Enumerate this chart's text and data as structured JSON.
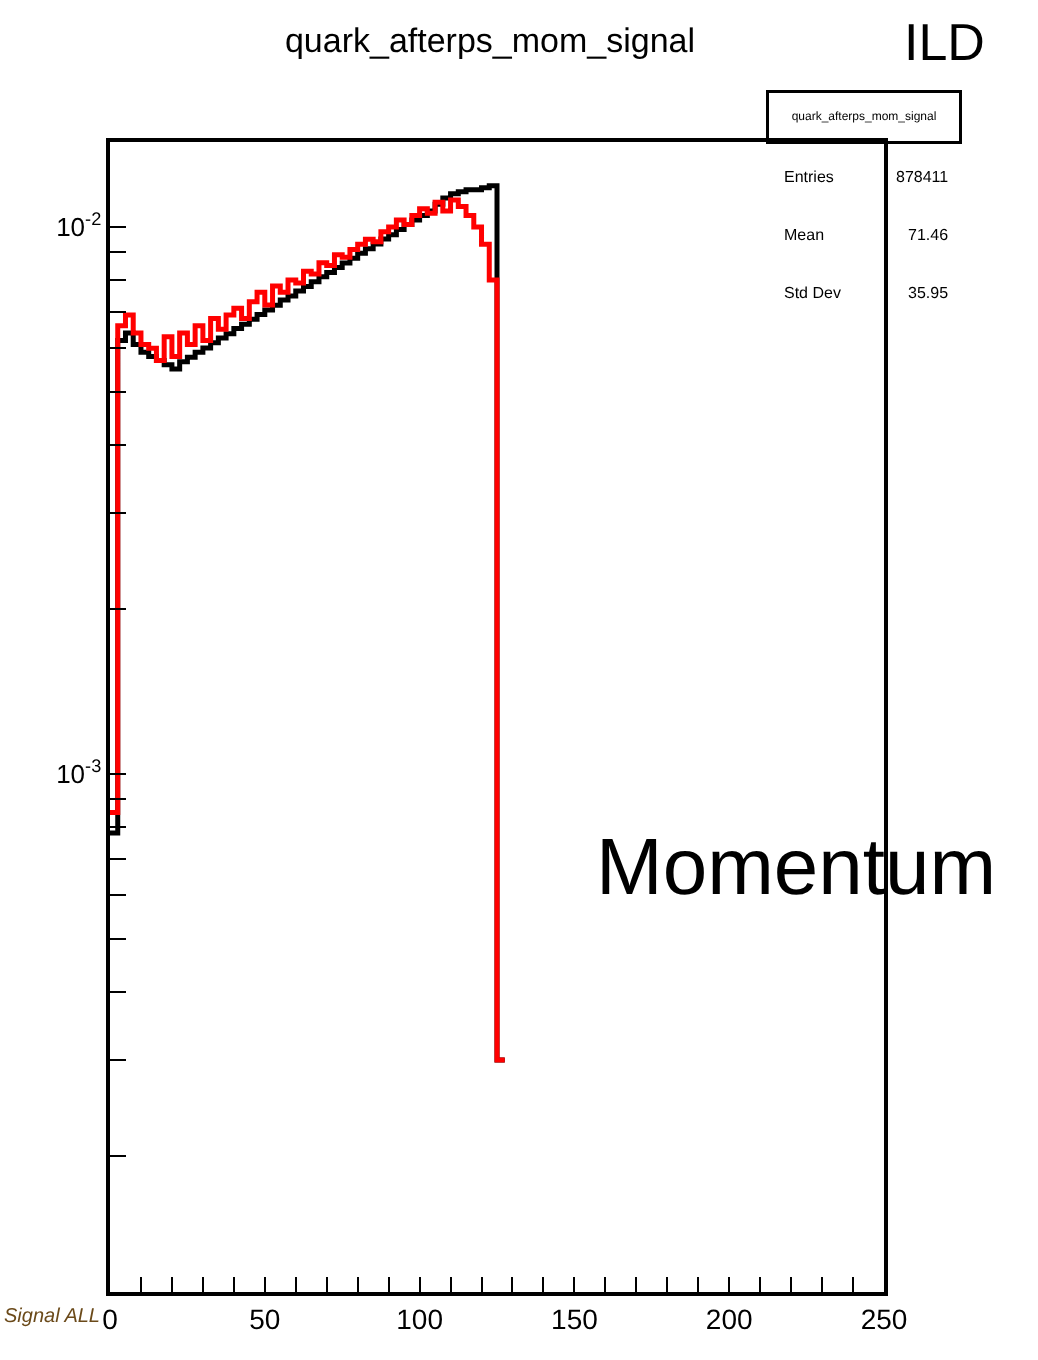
{
  "chart_data": {
    "type": "histogram",
    "title": "quark_afterps_mom_signal",
    "bins": [
      0,
      2.5,
      5,
      7.5,
      10,
      12.5,
      15,
      17.5,
      20,
      22.5,
      25,
      27.5,
      30,
      32.5,
      35,
      37.5,
      40,
      42.5,
      45,
      47.5,
      50,
      52.5,
      55,
      57.5,
      60,
      62.5,
      65,
      67.5,
      70,
      72.5,
      75,
      77.5,
      80,
      82.5,
      85,
      87.5,
      90,
      92.5,
      95,
      97.5,
      100,
      102.5,
      105,
      107.5,
      110,
      112.5,
      115,
      117.5,
      120,
      122.5,
      125,
      127.5
    ],
    "series": [
      {
        "color": "#000000",
        "values": [
          0.00078,
          0.0062,
          0.0064,
          0.0061,
          0.0059,
          0.0058,
          0.0057,
          0.0056,
          0.0055,
          0.00567,
          0.00578,
          0.0059,
          0.00601,
          0.00614,
          0.00627,
          0.00638,
          0.00652,
          0.00664,
          0.00678,
          0.00692,
          0.00705,
          0.00719,
          0.00735,
          0.00748,
          0.00764,
          0.00778,
          0.00794,
          0.00811,
          0.00826,
          0.00843,
          0.00859,
          0.00877,
          0.00895,
          0.00912,
          0.00931,
          0.00951,
          0.00968,
          0.00989,
          0.0101,
          0.0103,
          0.0105,
          0.0107,
          0.011,
          0.0113,
          0.0115,
          0.0116,
          0.0117,
          0.0117,
          0.0118,
          0.0119,
          0.0003
        ]
      },
      {
        "color": "#ff0000",
        "values": [
          0.00085,
          0.0066,
          0.0069,
          0.0064,
          0.0061,
          0.006,
          0.0057,
          0.0063,
          0.0058,
          0.0064,
          0.0061,
          0.0066,
          0.0062,
          0.0068,
          0.0065,
          0.0069,
          0.0071,
          0.0068,
          0.0073,
          0.0076,
          0.0072,
          0.0078,
          0.0076,
          0.008,
          0.0079,
          0.0083,
          0.0082,
          0.0086,
          0.0085,
          0.0089,
          0.0088,
          0.0091,
          0.0093,
          0.0095,
          0.0094,
          0.0098,
          0.01,
          0.0103,
          0.0101,
          0.0105,
          0.0108,
          0.0106,
          0.0111,
          0.0107,
          0.0112,
          0.0109,
          0.0105,
          0.01,
          0.0093,
          0.008,
          0.0003
        ]
      }
    ],
    "xlim": [
      0,
      250
    ],
    "xticks": [
      0,
      {
        "value": 10,
        "label": null
      },
      {
        "value": 20,
        "label": null
      },
      {
        "value": 30,
        "label": null
      },
      {
        "value": 40,
        "label": null
      },
      50,
      {
        "value": 60,
        "label": null
      },
      {
        "value": 70,
        "label": null
      },
      {
        "value": 80,
        "label": null
      },
      {
        "value": 90,
        "label": null
      },
      100,
      {
        "value": 110,
        "label": null
      },
      {
        "value": 120,
        "label": null
      },
      {
        "value": 130,
        "label": null
      },
      {
        "value": 140,
        "label": null
      },
      150,
      {
        "value": 160,
        "label": null
      },
      {
        "value": 170,
        "label": null
      },
      {
        "value": 180,
        "label": null
      },
      {
        "value": 190,
        "label": null
      },
      200,
      {
        "value": 210,
        "label": null
      },
      {
        "value": 220,
        "label": null
      },
      {
        "value": 230,
        "label": null
      },
      {
        "value": 240,
        "label": null
      },
      250
    ],
    "ylim": [
      0.000113,
      0.0143
    ],
    "yticks": [
      {
        "value": 0.0002,
        "label": null
      },
      {
        "value": 0.0003,
        "label": null
      },
      {
        "value": 0.0004,
        "label": null
      },
      {
        "value": 0.0005,
        "label": null
      },
      {
        "value": 0.0006,
        "label": null
      },
      {
        "value": 0.0007,
        "label": null
      },
      {
        "value": 0.0008,
        "label": null
      },
      {
        "value": 0.0009,
        "label": null
      },
      {
        "value": 0.001,
        "label": "10$^{-3}$"
      },
      {
        "value": 0.002,
        "label": null
      },
      {
        "value": 0.003,
        "label": null
      },
      {
        "value": 0.004,
        "label": null
      },
      {
        "value": 0.005,
        "label": null
      },
      {
        "value": 0.006,
        "label": null
      },
      {
        "value": 0.007,
        "label": null
      },
      {
        "value": 0.008,
        "label": null
      },
      {
        "value": 0.009,
        "label": null
      },
      {
        "value": 0.01,
        "label": "10$^{-2}$"
      }
    ],
    "log": true,
    "annotations": [
      "ILD",
      "quark_afterps_mom_signal",
      "Entries",
      "878411",
      "Mean",
      "71.46",
      "Std Dev",
      "35.95",
      "Momentum",
      "Signal ALL"
    ]
  }
}
